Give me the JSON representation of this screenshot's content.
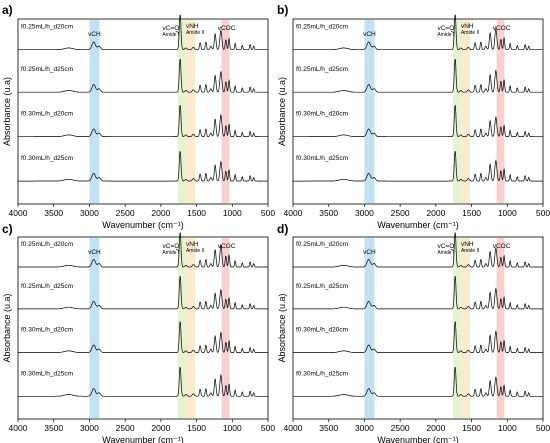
{
  "figure": {
    "panels": [
      {
        "label": "a)"
      },
      {
        "label": "b)"
      },
      {
        "label": "c)"
      },
      {
        "label": "d)"
      }
    ],
    "x_axis_title": "Wavenumber (cm⁻¹)",
    "y_axis_title": "Absorbance (u.a)",
    "band_labels": {
      "vch": "vCH",
      "vco": "vC=O",
      "amide1": "Amide I",
      "vnh": "vNH",
      "amide2": "Amide II",
      "vcoc": "vCOC"
    },
    "colors": {
      "vch_band": "#b8dcef",
      "amide1_band": "#e3f0c8",
      "amide2_band": "#f7e9c6",
      "vcoc_band": "#f6c9c8",
      "line": "#000000"
    }
  },
  "chart_data": [
    {
      "type": "line",
      "xlabel": "Wavenumber (cm⁻¹)",
      "ylabel": "Absorbance (u.a)",
      "xlim": [
        4000,
        500
      ],
      "xticks": [
        4000,
        3500,
        3000,
        2500,
        2000,
        1500,
        1000,
        500
      ],
      "series": [
        {
          "name": "f0.25mL/h_d20cm"
        },
        {
          "name": "f0.25mL/h_d25cm"
        },
        {
          "name": "f0.30mL/h_d20cm"
        },
        {
          "name": "f0.30mL/h_d25cm"
        }
      ],
      "bands": [
        [
          3000,
          2860
        ],
        [
          1760,
          1650
        ],
        [
          1650,
          1520
        ],
        [
          1150,
          1040
        ]
      ]
    },
    {
      "type": "line",
      "xlabel": "Wavenumber (cm⁻¹)",
      "ylabel": "Absorbance (u.a)",
      "xlim": [
        4000,
        500
      ],
      "xticks": [
        4000,
        3500,
        3000,
        2500,
        2000,
        1500,
        1000,
        500
      ],
      "series": [
        {
          "name": "f0.25mL/h_d20cm"
        },
        {
          "name": "f0.25mL/h_d25cm"
        },
        {
          "name": "f0.30mL/h_d20cm"
        },
        {
          "name": "f0.30mL/h_d25cm"
        }
      ],
      "bands": [
        [
          3000,
          2860
        ],
        [
          1760,
          1650
        ],
        [
          1650,
          1520
        ],
        [
          1150,
          1040
        ]
      ]
    },
    {
      "type": "line",
      "xlabel": "Wavenumber (cm⁻¹)",
      "ylabel": "Absorbance (u.a)",
      "xlim": [
        4000,
        500
      ],
      "xticks": [
        4000,
        3500,
        3000,
        2500,
        2000,
        1500,
        1000,
        500
      ],
      "series": [
        {
          "name": "f0.25mL/h_d20cm"
        },
        {
          "name": "f0.25mL/h_d25cm"
        },
        {
          "name": "f0.30mL/h_d20cm"
        },
        {
          "name": "f0.30mL/h_d25cm"
        }
      ],
      "bands": [
        [
          3000,
          2860
        ],
        [
          1760,
          1650
        ],
        [
          1650,
          1520
        ],
        [
          1150,
          1040
        ]
      ]
    },
    {
      "type": "line",
      "xlabel": "Wavenumber (cm⁻¹)",
      "ylabel": "Absorbance (u.a)",
      "xlim": [
        4000,
        500
      ],
      "xticks": [
        4000,
        3500,
        3000,
        2500,
        2000,
        1500,
        1000,
        500
      ],
      "series": [
        {
          "name": "f0.25mL/h_d20cm"
        },
        {
          "name": "f0.25mL/h_d25cm"
        },
        {
          "name": "f0.30mL/h_d20cm"
        },
        {
          "name": "f0.30mL/h_d25cm"
        }
      ],
      "bands": [
        [
          3000,
          2860
        ],
        [
          1760,
          1650
        ],
        [
          1650,
          1520
        ],
        [
          1150,
          1040
        ]
      ]
    }
  ]
}
